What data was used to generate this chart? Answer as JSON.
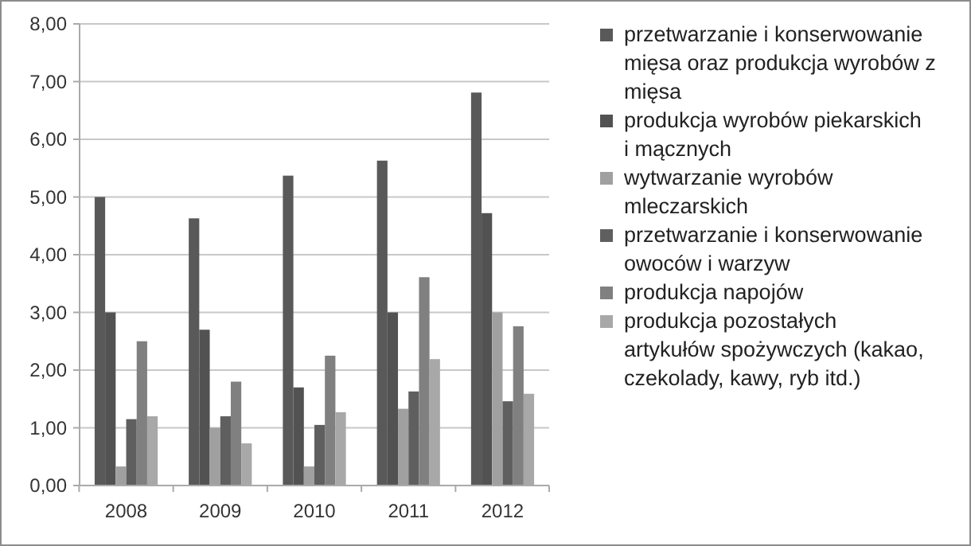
{
  "chart_data": {
    "type": "bar",
    "categories": [
      "2008",
      "2009",
      "2010",
      "2011",
      "2012"
    ],
    "series": [
      {
        "name": "przetwarzanie i konserwowanie mięsa oraz produkcja wyrobów z mięsa",
        "color": "#595959",
        "values": [
          5.0,
          4.63,
          5.37,
          5.63,
          6.81
        ]
      },
      {
        "name": "produkcja wyrobów piekarskich i mącznych",
        "color": "#525252",
        "values": [
          3.0,
          2.7,
          1.7,
          3.0,
          4.72
        ]
      },
      {
        "name": "wytwarzanie wyrobów mleczarskich",
        "color": "#a0a0a0",
        "values": [
          0.33,
          1.0,
          0.33,
          1.33,
          3.0
        ]
      },
      {
        "name": "przetwarzanie i konserwowanie owoców i warzyw",
        "color": "#5f5f5f",
        "values": [
          1.15,
          1.2,
          1.05,
          1.63,
          1.46
        ]
      },
      {
        "name": "produkcja napojów",
        "color": "#808080",
        "values": [
          2.5,
          1.8,
          2.25,
          3.61,
          2.76
        ]
      },
      {
        "name": "produkcja pozostałych artykułów spożywczych (kakao, czekolady, kawy, ryb itd.)",
        "color": "#a8a8a8",
        "values": [
          1.2,
          0.73,
          1.27,
          2.19,
          1.59
        ]
      }
    ],
    "ylim": [
      0,
      8
    ],
    "yticks": [
      {
        "value": 0,
        "label": "0,00"
      },
      {
        "value": 1,
        "label": "1,00"
      },
      {
        "value": 2,
        "label": "2,00"
      },
      {
        "value": 3,
        "label": "3,00"
      },
      {
        "value": 4,
        "label": "4,00"
      },
      {
        "value": 5,
        "label": "5,00"
      },
      {
        "value": 6,
        "label": "6,00"
      },
      {
        "value": 7,
        "label": "7,00"
      },
      {
        "value": 8,
        "label": "8,00"
      }
    ],
    "grid": "y",
    "legend": "right"
  }
}
